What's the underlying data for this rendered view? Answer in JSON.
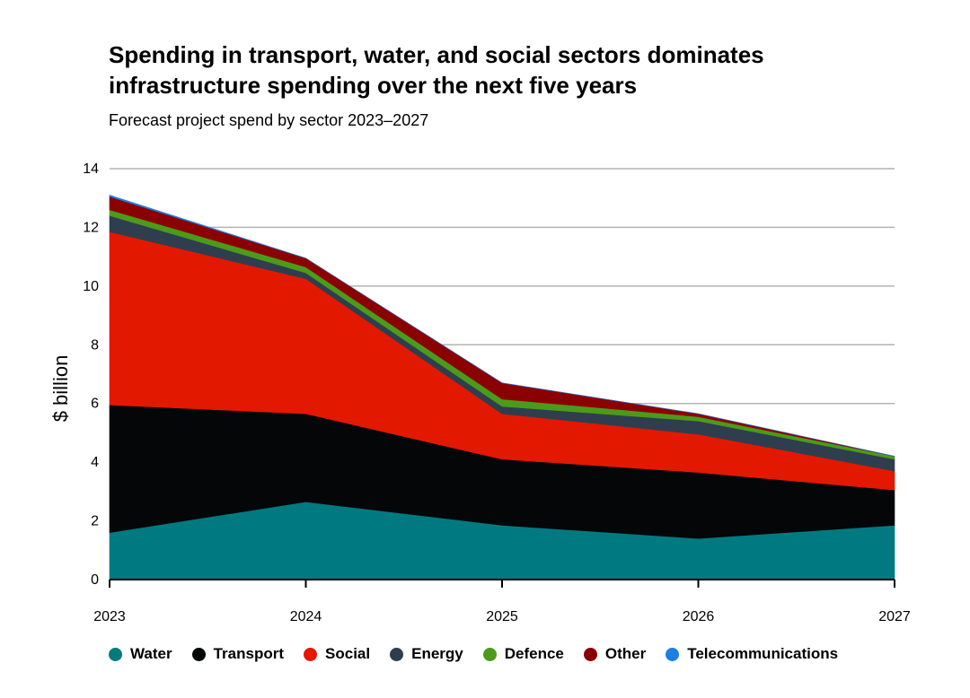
{
  "chart_data": {
    "type": "area",
    "stacked": true,
    "title": "Spending in transport, water, and social sectors dominates infrastructure spending over the next five years",
    "subtitle": "Forecast project spend by sector 2023–2027",
    "xlabel": "",
    "ylabel": "$ billion",
    "x": [
      "2023",
      "2024",
      "2025",
      "2026",
      "2027"
    ],
    "ylim": [
      0,
      14
    ],
    "yticks": [
      0,
      2,
      4,
      6,
      8,
      10,
      12,
      14
    ],
    "grid": true,
    "legend_position": "bottom",
    "series": [
      {
        "name": "Water",
        "color": "#007A80",
        "values": [
          1.6,
          2.65,
          1.85,
          1.4,
          1.85
        ]
      },
      {
        "name": "Transport",
        "color": "#050608",
        "values": [
          4.35,
          3.0,
          2.25,
          2.25,
          1.2
        ]
      },
      {
        "name": "Social",
        "color": "#E31800",
        "values": [
          5.9,
          4.6,
          1.55,
          1.3,
          0.65
        ]
      },
      {
        "name": "Energy",
        "color": "#2E3E4E",
        "values": [
          0.55,
          0.2,
          0.25,
          0.45,
          0.4
        ]
      },
      {
        "name": "Defence",
        "color": "#4C9A1A",
        "values": [
          0.2,
          0.2,
          0.25,
          0.15,
          0.1
        ]
      },
      {
        "name": "Other",
        "color": "#8B0000",
        "values": [
          0.45,
          0.3,
          0.55,
          0.1,
          0.0
        ]
      },
      {
        "name": "Telecommunications",
        "color": "#1E7FE0",
        "values": [
          0.05,
          0.0,
          0.0,
          0.0,
          0.0
        ]
      }
    ]
  }
}
